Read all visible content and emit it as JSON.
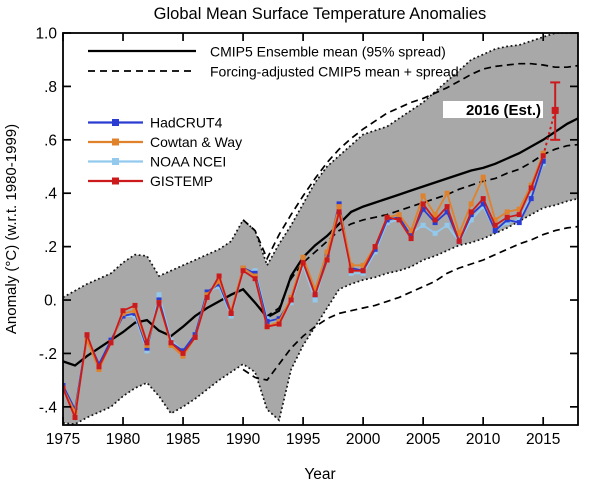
{
  "chart_data": {
    "type": "line",
    "title": "Global Mean Surface Temperature Anomalies",
    "xlabel": "Year",
    "ylabel": "Anomaly (°C) (w.r.t. 1980-1999)",
    "xlim": [
      1975,
      2017.9
    ],
    "ylim": [
      -0.468,
      1.0
    ],
    "grid": false,
    "x_ticks": [
      1975,
      1980,
      1985,
      1990,
      1995,
      2000,
      2005,
      2010,
      2015
    ],
    "x_tick_labels": [
      "1975",
      "1980",
      "1985",
      "1990",
      "1995",
      "2000",
      "2005",
      "2010",
      "2015"
    ],
    "y_ticks": [
      1.0,
      0.8,
      0.6,
      0.4,
      0.2,
      0.0,
      -0.2,
      -0.4
    ],
    "y_tick_labels": [
      "1.0",
      ".8",
      ".6",
      ".4",
      ".2",
      "0.",
      "-.2",
      "-.4"
    ],
    "legend_model": [
      {
        "label": "CMIP5 Ensemble mean (95% spread)",
        "style": "solid"
      },
      {
        "label": "Forcing-adjusted CMIP5 mean + spread",
        "style": "dashed"
      }
    ],
    "cmip5": {
      "band_color": "#a8a8a8",
      "line_color": "#000000",
      "years": [
        1975,
        1976,
        1977,
        1978,
        1979,
        1980,
        1981,
        1982,
        1983,
        1984,
        1985,
        1986,
        1987,
        1988,
        1989,
        1990,
        1991,
        1992,
        1993,
        1994,
        1995,
        1996,
        1997,
        1998,
        1999,
        2000,
        2001,
        2002,
        2003,
        2004,
        2005,
        2006,
        2007,
        2008,
        2009,
        2010,
        2011,
        2012,
        2013,
        2014,
        2015,
        2016,
        2017,
        2017.9
      ],
      "mean": [
        -0.23,
        -0.245,
        -0.21,
        -0.18,
        -0.15,
        -0.12,
        -0.085,
        -0.075,
        -0.115,
        -0.135,
        -0.1,
        -0.06,
        -0.03,
        -0.005,
        0.02,
        0.04,
        -0.01,
        -0.065,
        -0.04,
        0.09,
        0.16,
        0.205,
        0.24,
        0.285,
        0.33,
        0.35,
        0.365,
        0.38,
        0.395,
        0.41,
        0.425,
        0.44,
        0.455,
        0.47,
        0.485,
        0.495,
        0.51,
        0.53,
        0.55,
        0.575,
        0.6,
        0.63,
        0.66,
        0.68
      ],
      "upper": [
        0.01,
        0.035,
        0.06,
        0.08,
        0.1,
        0.14,
        0.17,
        0.165,
        0.09,
        0.11,
        0.13,
        0.15,
        0.17,
        0.19,
        0.22,
        0.3,
        0.26,
        0.13,
        0.21,
        0.28,
        0.36,
        0.44,
        0.5,
        0.54,
        0.58,
        0.62,
        0.635,
        0.65,
        0.68,
        0.71,
        0.74,
        0.78,
        0.82,
        0.86,
        0.9,
        0.92,
        0.94,
        0.95,
        0.955,
        0.97,
        0.985,
        1.0,
        1.0,
        1.0
      ],
      "lower": [
        -0.46,
        -0.465,
        -0.44,
        -0.42,
        -0.4,
        -0.36,
        -0.33,
        -0.31,
        -0.36,
        -0.425,
        -0.4,
        -0.37,
        -0.335,
        -0.3,
        -0.27,
        -0.24,
        -0.27,
        -0.41,
        -0.45,
        -0.26,
        -0.17,
        -0.1,
        -0.03,
        0.04,
        0.06,
        0.075,
        0.085,
        0.1,
        0.11,
        0.125,
        0.15,
        0.165,
        0.185,
        0.205,
        0.215,
        0.23,
        0.25,
        0.27,
        0.295,
        0.32,
        0.345,
        0.355,
        0.37,
        0.38
      ]
    },
    "adjusted": {
      "line_color": "#000000",
      "years": [
        1990,
        1991,
        1992,
        1993,
        1994,
        1995,
        1996,
        1997,
        1998,
        1999,
        2000,
        2001,
        2002,
        2003,
        2004,
        2005,
        2006,
        2007,
        2008,
        2009,
        2010,
        2011,
        2012,
        2013,
        2014,
        2015,
        2016,
        2017,
        2017.9
      ],
      "mean": [
        0.04,
        -0.01,
        -0.06,
        -0.03,
        0.08,
        0.14,
        0.18,
        0.22,
        0.26,
        0.285,
        0.3,
        0.31,
        0.32,
        0.335,
        0.35,
        0.365,
        0.38,
        0.395,
        0.415,
        0.43,
        0.445,
        0.455,
        0.475,
        0.49,
        0.515,
        0.545,
        0.565,
        0.578,
        0.582
      ],
      "upper": [
        0.3,
        0.26,
        0.155,
        0.245,
        0.32,
        0.39,
        0.455,
        0.515,
        0.565,
        0.605,
        0.64,
        0.67,
        0.7,
        0.72,
        0.74,
        0.755,
        0.775,
        0.795,
        0.82,
        0.845,
        0.865,
        0.875,
        0.88,
        0.885,
        0.885,
        0.88,
        0.872,
        0.872,
        0.878
      ],
      "lower": [
        -0.26,
        -0.29,
        -0.3,
        -0.24,
        -0.18,
        -0.135,
        -0.1,
        -0.07,
        -0.05,
        -0.04,
        -0.03,
        -0.02,
        -0.005,
        0.01,
        0.03,
        0.05,
        0.07,
        0.1,
        0.12,
        0.135,
        0.15,
        0.17,
        0.19,
        0.21,
        0.225,
        0.245,
        0.26,
        0.27,
        0.275
      ]
    },
    "observations": {
      "years": [
        1975,
        1976,
        1977,
        1978,
        1979,
        1980,
        1981,
        1982,
        1983,
        1984,
        1985,
        1986,
        1987,
        1988,
        1989,
        1990,
        1991,
        1992,
        1993,
        1994,
        1995,
        1996,
        1997,
        1998,
        1999,
        2000,
        2001,
        2002,
        2003,
        2004,
        2005,
        2006,
        2007,
        2008,
        2009,
        2010,
        2011,
        2012,
        2013,
        2014,
        2015
      ],
      "series": [
        {
          "name": "HadCRUT4",
          "color": "#2a3cd1",
          "values": [
            -0.32,
            -0.41,
            -0.14,
            -0.24,
            -0.15,
            -0.06,
            -0.05,
            -0.18,
            0.0,
            -0.16,
            -0.19,
            -0.13,
            0.03,
            0.06,
            -0.05,
            0.12,
            0.1,
            -0.08,
            -0.07,
            0.0,
            0.15,
            0.02,
            0.17,
            0.36,
            0.12,
            0.11,
            0.19,
            0.3,
            0.31,
            0.24,
            0.34,
            0.29,
            0.33,
            0.22,
            0.32,
            0.36,
            0.26,
            0.3,
            0.29,
            0.38,
            0.52
          ]
        },
        {
          "name": "Cowtan & Way",
          "color": "#e0812c",
          "values": [
            -0.33,
            -0.42,
            -0.15,
            -0.26,
            -0.16,
            -0.05,
            -0.04,
            -0.17,
            -0.01,
            -0.17,
            -0.21,
            -0.14,
            0.02,
            0.07,
            -0.04,
            0.12,
            0.09,
            -0.1,
            -0.08,
            0.01,
            0.16,
            0.04,
            0.18,
            0.35,
            0.13,
            0.13,
            0.2,
            0.31,
            0.32,
            0.26,
            0.39,
            0.32,
            0.4,
            0.25,
            0.36,
            0.46,
            0.3,
            0.33,
            0.34,
            0.43,
            0.55
          ]
        },
        {
          "name": "NOAA NCEI",
          "color": "#93c9ed",
          "values": [
            -0.33,
            -0.42,
            -0.14,
            -0.24,
            -0.15,
            -0.06,
            -0.06,
            -0.19,
            0.02,
            -0.15,
            -0.19,
            -0.13,
            0.03,
            0.05,
            -0.06,
            0.11,
            0.11,
            -0.07,
            -0.08,
            -0.01,
            0.13,
            0.0,
            0.16,
            0.33,
            0.1,
            0.1,
            0.18,
            0.29,
            0.3,
            0.25,
            0.28,
            0.25,
            0.28,
            0.22,
            0.3,
            0.35,
            0.26,
            0.29,
            0.3,
            0.39,
            0.51
          ]
        },
        {
          "name": "GISTEMP",
          "color": "#cc1a1c",
          "values": [
            -0.33,
            -0.44,
            -0.13,
            -0.25,
            -0.16,
            -0.04,
            -0.02,
            -0.16,
            -0.01,
            -0.16,
            -0.2,
            -0.14,
            0.01,
            0.09,
            -0.05,
            0.11,
            0.08,
            -0.1,
            -0.09,
            0.0,
            0.14,
            0.02,
            0.15,
            0.33,
            0.11,
            0.11,
            0.2,
            0.31,
            0.3,
            0.23,
            0.36,
            0.3,
            0.35,
            0.22,
            0.33,
            0.38,
            0.28,
            0.31,
            0.32,
            0.42,
            0.54
          ]
        }
      ]
    },
    "estimate_2016": {
      "label": "2016 (Est.)",
      "series": "GISTEMP",
      "year": 2016,
      "value": 0.71,
      "low": 0.6,
      "high": 0.815,
      "color": "#cc1a1c",
      "label_color": "#b5191d"
    }
  }
}
